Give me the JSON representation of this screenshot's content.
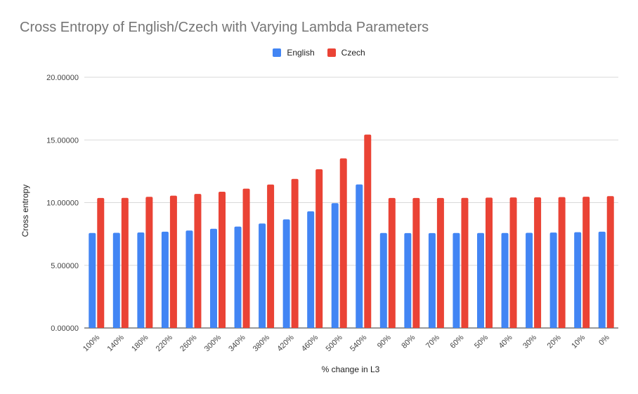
{
  "chart_data": {
    "type": "bar",
    "title": "Cross Entropy of English/Czech with Varying Lambda Parameters",
    "xlabel": "% change in L3",
    "ylabel": "Cross entropy",
    "ylim": [
      0,
      20
    ],
    "yticks": [
      "0.00000",
      "5.00000",
      "10.00000",
      "15.00000",
      "20.00000"
    ],
    "grid": true,
    "legend_position": "top",
    "categories": [
      "100%",
      "140%",
      "180%",
      "220%",
      "260%",
      "300%",
      "340%",
      "380%",
      "420%",
      "460%",
      "500%",
      "540%",
      "90%",
      "80%",
      "70%",
      "60%",
      "50%",
      "40%",
      "30%",
      "20%",
      "10%",
      "0%"
    ],
    "series": [
      {
        "name": "English",
        "color": "#4285f4",
        "values": [
          7.58,
          7.59,
          7.62,
          7.68,
          7.77,
          7.91,
          8.09,
          8.33,
          8.66,
          9.31,
          9.96,
          11.45,
          7.58,
          7.57,
          7.57,
          7.58,
          7.58,
          7.58,
          7.59,
          7.61,
          7.64,
          7.68
        ]
      },
      {
        "name": "Czech",
        "color": "#ea4335",
        "values": [
          10.37,
          10.38,
          10.46,
          10.55,
          10.69,
          10.87,
          11.11,
          11.44,
          11.89,
          12.66,
          13.53,
          15.43,
          10.37,
          10.37,
          10.37,
          10.38,
          10.4,
          10.41,
          10.42,
          10.44,
          10.47,
          10.52
        ]
      }
    ]
  }
}
